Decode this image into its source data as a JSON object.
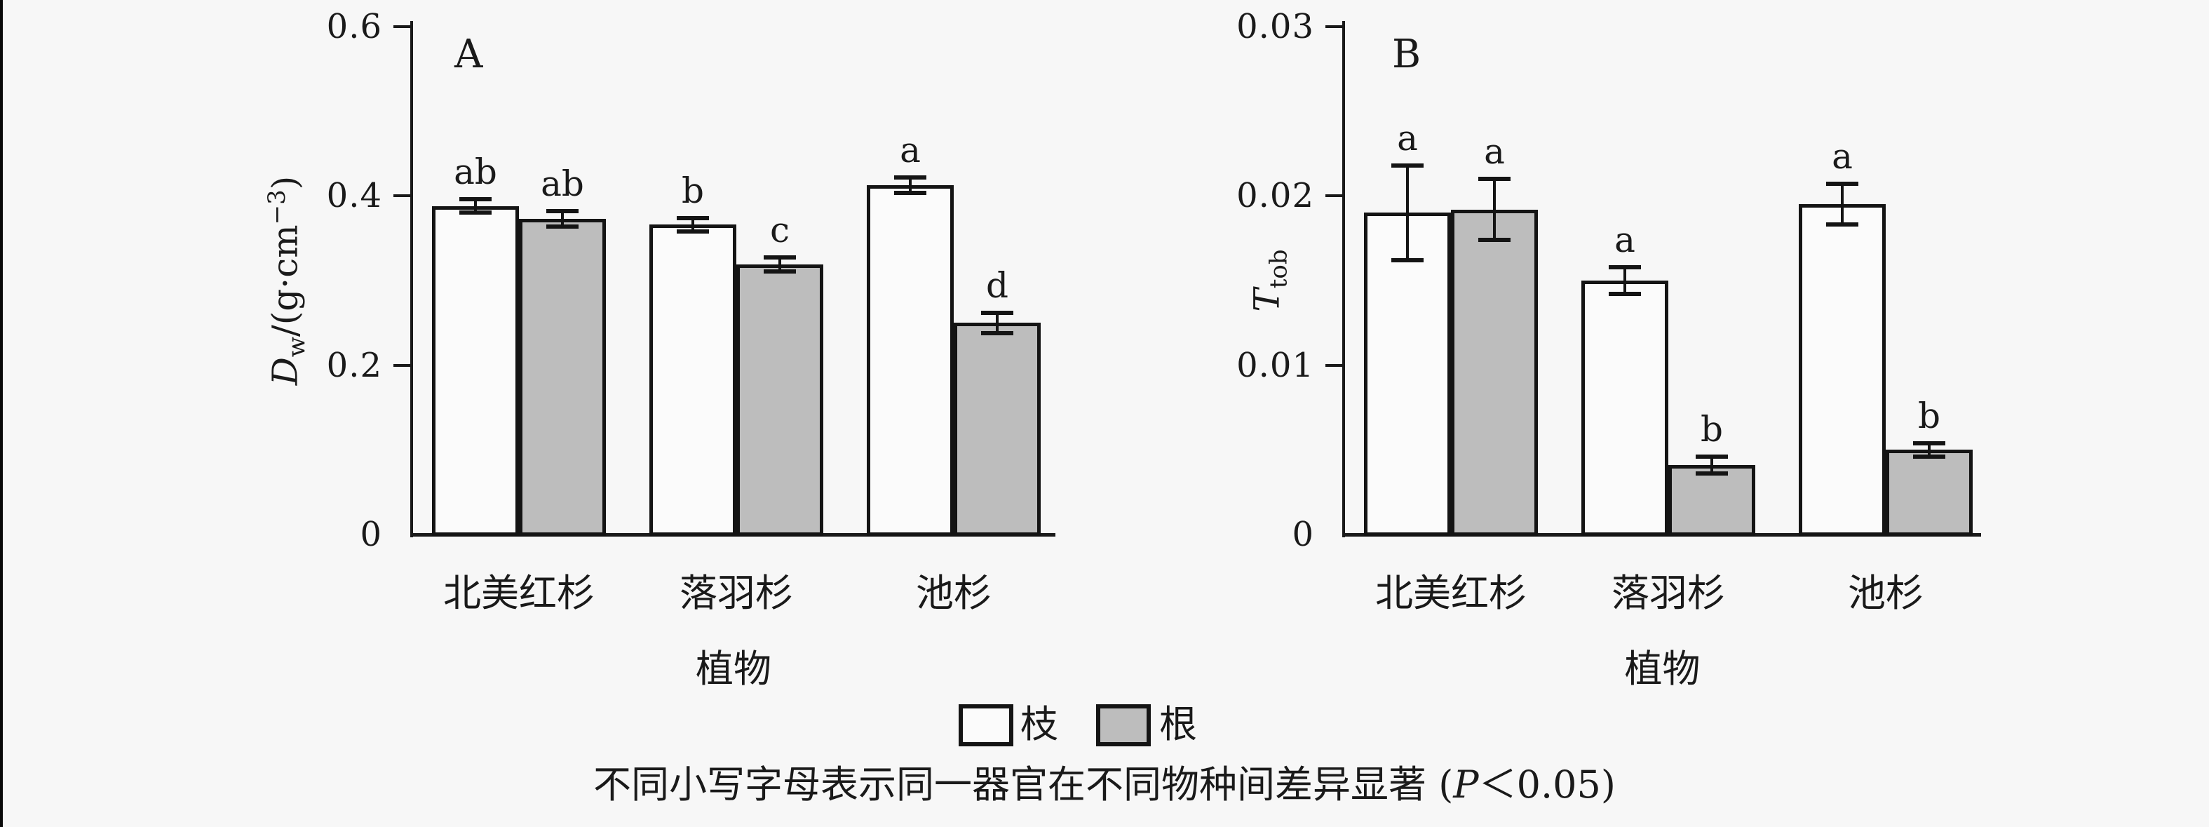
{
  "background": "#f7f7f7",
  "colors": {
    "stroke": "#141414",
    "bar_white_fill": "#fbfbfb",
    "bar_gray_fill": "#bdbdbd",
    "background": "#f7f7f7"
  },
  "legend": {
    "items": [
      {
        "label": "枝",
        "fill": "white"
      },
      {
        "label": "根",
        "fill": "gray"
      }
    ]
  },
  "caption": {
    "pre": "不同小写字母表示同一器官在不同物种间差异显著 (",
    "p": "P",
    "post": "＜0.05)"
  },
  "chart_data": [
    {
      "type": "bar",
      "panel_label": "A",
      "ylabel": "Dw/(g·cm−3)",
      "ylabel_parts": {
        "var": "D",
        "sub": "w",
        "unit_pre": "/(g·cm",
        "sup": "−3",
        "unit_post": ")"
      },
      "xlabel": "植物",
      "categories": [
        "北美红杉",
        "落羽杉",
        "池杉"
      ],
      "ylim": [
        0,
        0.6
      ],
      "yticks": [
        {
          "value": 0,
          "label": "0"
        },
        {
          "value": 0.2,
          "label": "0.2"
        },
        {
          "value": 0.4,
          "label": "0.4"
        },
        {
          "value": 0.6,
          "label": "0.6"
        }
      ],
      "grid": false,
      "series": [
        {
          "name": "枝",
          "fill": "white",
          "values": [
            0.388,
            0.366,
            0.413
          ],
          "errors": [
            0.008,
            0.008,
            0.009
          ],
          "letters": [
            "ab",
            "b",
            "a"
          ]
        },
        {
          "name": "根",
          "fill": "gray",
          "values": [
            0.373,
            0.319,
            0.25
          ],
          "errors": [
            0.009,
            0.008,
            0.012
          ],
          "letters": [
            "ab",
            "c",
            "d"
          ]
        }
      ]
    },
    {
      "type": "bar",
      "panel_label": "B",
      "ylabel": "Ttob",
      "ylabel_parts": {
        "var": "T",
        "sub": "tob",
        "unit_pre": "",
        "sup": "",
        "unit_post": ""
      },
      "xlabel": "植物",
      "categories": [
        "北美红杉",
        "落羽杉",
        "池杉"
      ],
      "ylim": [
        0,
        0.03
      ],
      "yticks": [
        {
          "value": 0,
          "label": "0"
        },
        {
          "value": 0.01,
          "label": "0.01"
        },
        {
          "value": 0.02,
          "label": "0.02"
        },
        {
          "value": 0.03,
          "label": "0.03"
        }
      ],
      "grid": false,
      "series": [
        {
          "name": "枝",
          "fill": "white",
          "values": [
            0.019,
            0.015,
            0.0195
          ],
          "errors": [
            0.0028,
            0.0008,
            0.0012
          ],
          "letters": [
            "a",
            "a",
            "a"
          ]
        },
        {
          "name": "根",
          "fill": "gray",
          "values": [
            0.0192,
            0.0041,
            0.005
          ],
          "errors": [
            0.0018,
            0.0005,
            0.0004
          ],
          "letters": [
            "a",
            "b",
            "b"
          ]
        }
      ]
    }
  ]
}
